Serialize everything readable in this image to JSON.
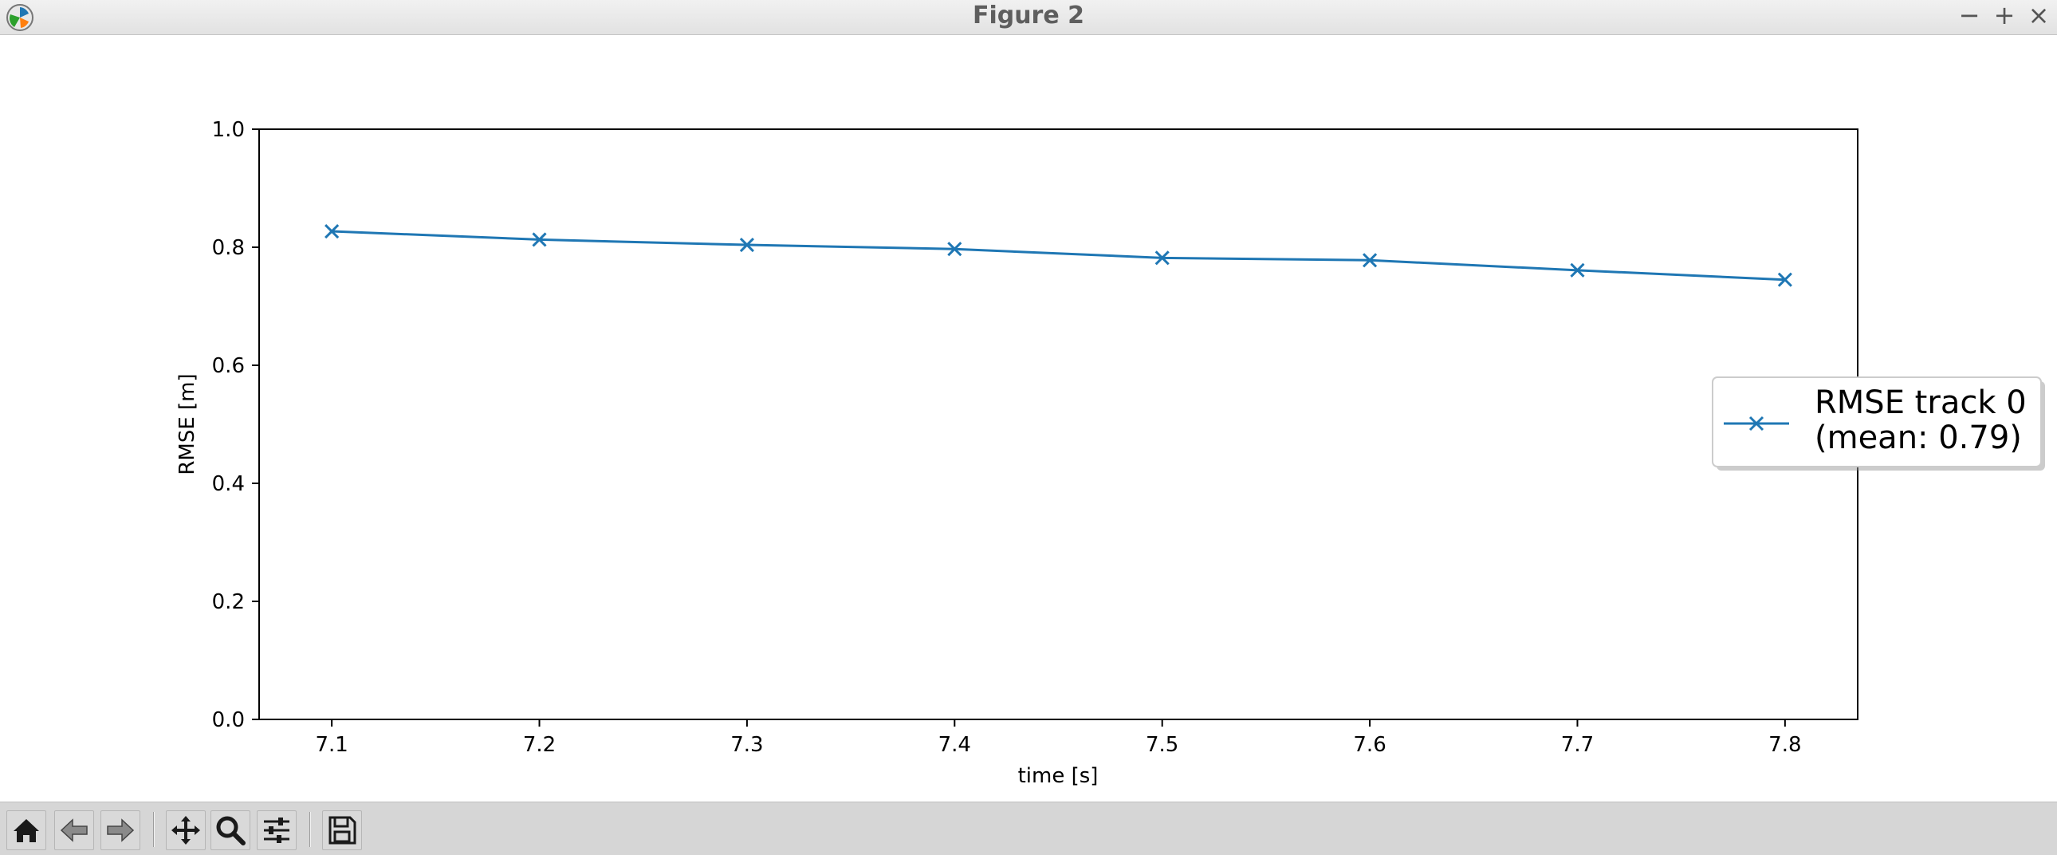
{
  "window": {
    "title": "Figure 2",
    "controls": {
      "minimize": "−",
      "maximize": "+",
      "close": "×"
    }
  },
  "toolbar": {
    "icons": [
      "home-icon",
      "back-arrow-icon",
      "forward-arrow-icon",
      "pan-icon",
      "zoom-icon",
      "configure-subplots-icon",
      "save-icon"
    ]
  },
  "chart_data": {
    "type": "line",
    "title": "",
    "xlabel": "time [s]",
    "ylabel": "RMSE [m]",
    "xlim": [
      7.065,
      7.835
    ],
    "ylim": [
      0.0,
      1.0
    ],
    "xticks": [
      "7.1",
      "7.2",
      "7.3",
      "7.4",
      "7.5",
      "7.6",
      "7.7",
      "7.8"
    ],
    "yticks": [
      "0.0",
      "0.2",
      "0.4",
      "0.6",
      "0.8",
      "1.0"
    ],
    "grid": false,
    "legend_position": "right, outside axes",
    "series": [
      {
        "name": "RMSE track 0\n(mean: 0.79)",
        "legend_lines": [
          "RMSE track 0",
          "(mean: 0.79)"
        ],
        "color": "#1f77b4",
        "marker": "x",
        "x": [
          7.1,
          7.2,
          7.3,
          7.4,
          7.5,
          7.6,
          7.7,
          7.8
        ],
        "y": [
          0.827,
          0.813,
          0.804,
          0.797,
          0.782,
          0.778,
          0.761,
          0.745
        ]
      }
    ]
  }
}
